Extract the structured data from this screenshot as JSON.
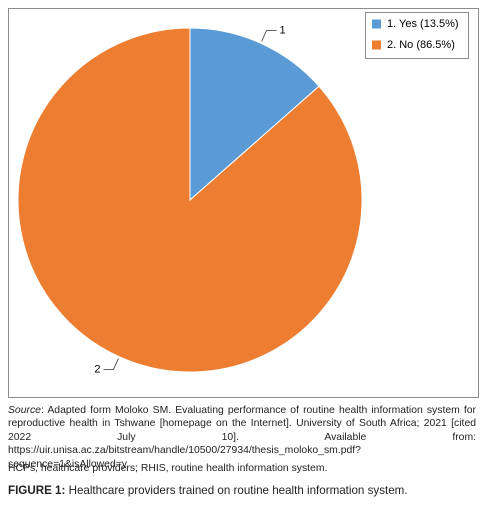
{
  "chart_data": {
    "type": "pie",
    "labels": [
      "1. Yes (13.5%)",
      "2. No (86.5%)"
    ],
    "values": [
      13.5,
      86.5
    ],
    "slice_labels": [
      "1",
      "2"
    ],
    "colors": [
      "#5b9bd5",
      "#ed7d31"
    ],
    "legend": "top-right"
  },
  "source_label": "Source",
  "source_text": ": Adapted form Moloko SM. Evaluating performance of routine health information system for reproductive health in Tshwane [homepage on the Internet]. University of South Africa; 2021 [cited 2022 July 10]. Available from: https://uir.unisa.ac.za/bitstream/handle/10500/27934/thesis_moloko_sm.pdf?sequence=1&isAllowed=y",
  "abbreviations": "HCPs, healthcare providers; RHIS, routine health information system.",
  "caption_label": "FIGURE 1:",
  "caption_text": " Healthcare providers trained on routine health information system."
}
